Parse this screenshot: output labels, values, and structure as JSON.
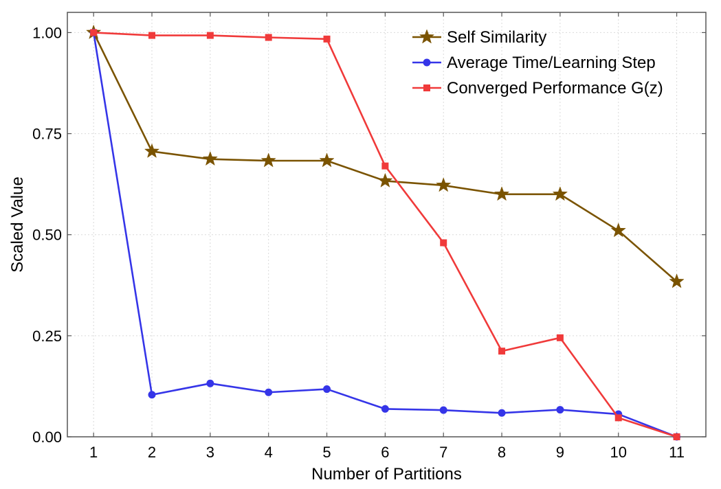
{
  "chart_data": {
    "type": "line",
    "title": "",
    "xlabel": "Number of Partitions",
    "ylabel": "Scaled Value",
    "x": [
      1,
      2,
      3,
      4,
      5,
      6,
      7,
      8,
      9,
      10,
      11
    ],
    "xlim": [
      0.55,
      11.5
    ],
    "ylim": [
      0,
      1.05
    ],
    "xticks": [
      "1",
      "2",
      "3",
      "4",
      "5",
      "6",
      "7",
      "8",
      "9",
      "10",
      "11"
    ],
    "yticks": [
      {
        "value": 0,
        "label": "0.00"
      },
      {
        "value": 0.25,
        "label": "0.25"
      },
      {
        "value": 0.5,
        "label": "0.50"
      },
      {
        "value": 0.75,
        "label": "0.75"
      },
      {
        "value": 1.0,
        "label": "1.00"
      }
    ],
    "grid": true,
    "legend_position": "top-right",
    "series": [
      {
        "name": "Self Similarity",
        "color": "#7a5300",
        "marker": "star",
        "values": [
          1.0,
          0.706,
          0.687,
          0.683,
          0.683,
          0.633,
          0.622,
          0.6,
          0.6,
          0.51,
          0.384
        ]
      },
      {
        "name": "Average Time/Learning Step",
        "color": "#3535e8",
        "marker": "circle",
        "values": [
          1.0,
          0.104,
          0.132,
          0.11,
          0.118,
          0.069,
          0.066,
          0.059,
          0.067,
          0.056,
          0.0
        ]
      },
      {
        "name": "Converged Performance G(z)",
        "color": "#f03a3a",
        "marker": "square",
        "values": [
          1.0,
          0.993,
          0.993,
          0.988,
          0.984,
          0.67,
          0.48,
          0.212,
          0.245,
          0.047,
          0.0
        ]
      }
    ]
  }
}
